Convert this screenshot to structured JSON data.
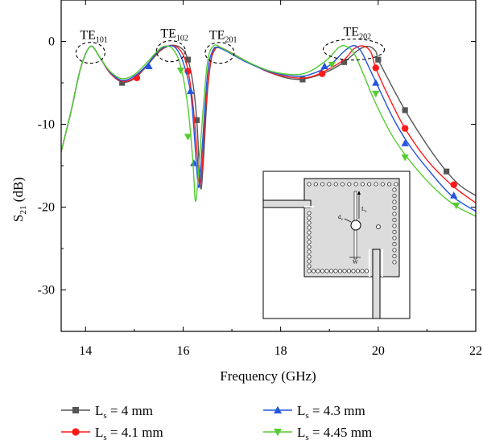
{
  "chart_data": {
    "type": "line",
    "xlabel": "Frequency (GHz)",
    "ylabel": "S21 (dB)",
    "ylabel_base": "S",
    "ylabel_sub": "21",
    "ylabel_rest": " (dB)",
    "xlim": [
      13.5,
      22
    ],
    "ylim": [
      -35,
      5
    ],
    "x_ticks": [
      14,
      16,
      18,
      20,
      22
    ],
    "y_ticks": [
      0,
      -10,
      -20,
      -30
    ],
    "x_tick_labels": [
      "14",
      "16",
      "18",
      "20",
      "22"
    ],
    "y_tick_labels": [
      "0",
      "-10",
      "-20",
      "-30"
    ],
    "grid": false,
    "annotations": [
      {
        "base": "TE",
        "sub": "101",
        "x": 14.1,
        "y": -0.7
      },
      {
        "base": "TE",
        "sub": "102",
        "x": 15.75,
        "y": -0.5
      },
      {
        "base": "TE",
        "sub": "201",
        "x": 16.75,
        "y": -0.7
      },
      {
        "base": "TE",
        "sub": "202",
        "x": 19.5,
        "y": -0.3
      }
    ],
    "series": [
      {
        "name": "Ls = 4 mm",
        "name_base": "L",
        "name_sub": "s",
        "name_rest": " = 4 mm",
        "color": "#555555",
        "marker": "square",
        "points": [
          [
            13.5,
            -13.3
          ],
          [
            13.7,
            -8.5
          ],
          [
            13.9,
            -3.2
          ],
          [
            14.1,
            -0.6
          ],
          [
            14.3,
            -2.0
          ],
          [
            14.5,
            -3.8
          ],
          [
            14.75,
            -4.9
          ],
          [
            15.0,
            -4.5
          ],
          [
            15.25,
            -3.0
          ],
          [
            15.5,
            -1.3
          ],
          [
            15.7,
            -0.55
          ],
          [
            15.85,
            -0.5
          ],
          [
            16.0,
            -1.0
          ],
          [
            16.1,
            -2.2
          ],
          [
            16.2,
            -5.0
          ],
          [
            16.28,
            -9.5
          ],
          [
            16.33,
            -15.0
          ],
          [
            16.37,
            -17.8
          ],
          [
            16.42,
            -14.0
          ],
          [
            16.5,
            -6.0
          ],
          [
            16.6,
            -1.5
          ],
          [
            16.7,
            -0.7
          ],
          [
            16.9,
            -1.1
          ],
          [
            17.3,
            -2.4
          ],
          [
            17.8,
            -3.8
          ],
          [
            18.2,
            -4.5
          ],
          [
            18.5,
            -4.5
          ],
          [
            18.9,
            -3.8
          ],
          [
            19.3,
            -2.5
          ],
          [
            19.6,
            -1.0
          ],
          [
            19.8,
            -0.6
          ],
          [
            19.95,
            -1.2
          ],
          [
            20.0,
            -2.2
          ],
          [
            20.2,
            -4.5
          ],
          [
            20.55,
            -8.3
          ],
          [
            21.0,
            -12.5
          ],
          [
            21.4,
            -15.7
          ],
          [
            21.7,
            -17.5
          ],
          [
            22.0,
            -18.6
          ]
        ],
        "markers": [
          [
            14.75,
            -5.0
          ],
          [
            16.1,
            -2.2
          ],
          [
            16.28,
            -9.5
          ],
          [
            18.45,
            -4.6
          ],
          [
            19.3,
            -2.5
          ],
          [
            20.0,
            -2.2
          ],
          [
            20.55,
            -8.3
          ],
          [
            21.4,
            -15.7
          ]
        ]
      },
      {
        "name": "Ls = 4.1 mm",
        "name_base": "L",
        "name_sub": "s",
        "name_rest": " = 4.1 mm",
        "color": "#ff1a1a",
        "marker": "circle",
        "points": [
          [
            13.5,
            -13.3
          ],
          [
            13.7,
            -8.5
          ],
          [
            13.9,
            -3.2
          ],
          [
            14.1,
            -0.6
          ],
          [
            14.3,
            -2.0
          ],
          [
            14.5,
            -3.8
          ],
          [
            14.75,
            -4.8
          ],
          [
            15.0,
            -4.4
          ],
          [
            15.25,
            -2.9
          ],
          [
            15.5,
            -1.2
          ],
          [
            15.7,
            -0.55
          ],
          [
            15.85,
            -0.6
          ],
          [
            16.0,
            -1.6
          ],
          [
            16.1,
            -3.5
          ],
          [
            16.2,
            -7.5
          ],
          [
            16.28,
            -13.0
          ],
          [
            16.33,
            -17.0
          ],
          [
            16.38,
            -16.0
          ],
          [
            16.45,
            -9.0
          ],
          [
            16.55,
            -3.0
          ],
          [
            16.65,
            -1.0
          ],
          [
            16.8,
            -0.8
          ],
          [
            17.3,
            -2.4
          ],
          [
            17.8,
            -3.8
          ],
          [
            18.3,
            -4.4
          ],
          [
            18.6,
            -4.3
          ],
          [
            18.9,
            -3.6
          ],
          [
            19.3,
            -2.2
          ],
          [
            19.5,
            -0.9
          ],
          [
            19.7,
            -0.55
          ],
          [
            19.85,
            -1.3
          ],
          [
            19.95,
            -3.2
          ],
          [
            20.2,
            -6.5
          ],
          [
            20.55,
            -10.5
          ],
          [
            21.0,
            -14.3
          ],
          [
            21.5,
            -17.3
          ],
          [
            22.0,
            -19.5
          ]
        ],
        "markers": [
          [
            15.05,
            -4.4
          ],
          [
            16.1,
            -3.6
          ],
          [
            18.85,
            -3.9
          ],
          [
            19.95,
            -3.2
          ],
          [
            20.55,
            -10.5
          ],
          [
            21.55,
            -17.3
          ]
        ]
      },
      {
        "name": "Ls = 4.3 mm",
        "name_base": "L",
        "name_sub": "s",
        "name_rest": " = 4.3 mm",
        "color": "#2255dd",
        "marker": "triangle-up",
        "points": [
          [
            13.5,
            -13.3
          ],
          [
            13.7,
            -8.5
          ],
          [
            13.9,
            -3.2
          ],
          [
            14.1,
            -0.6
          ],
          [
            14.3,
            -2.0
          ],
          [
            14.5,
            -3.7
          ],
          [
            14.75,
            -4.7
          ],
          [
            15.0,
            -4.2
          ],
          [
            15.25,
            -2.9
          ],
          [
            15.5,
            -1.1
          ],
          [
            15.7,
            -0.55
          ],
          [
            15.85,
            -0.8
          ],
          [
            16.0,
            -2.5
          ],
          [
            16.15,
            -6.0
          ],
          [
            16.22,
            -10.5
          ],
          [
            16.28,
            -15.5
          ],
          [
            16.33,
            -17.5
          ],
          [
            16.4,
            -12.0
          ],
          [
            16.5,
            -4.0
          ],
          [
            16.6,
            -1.2
          ],
          [
            16.75,
            -0.8
          ],
          [
            17.3,
            -2.5
          ],
          [
            17.8,
            -3.7
          ],
          [
            18.3,
            -4.2
          ],
          [
            18.6,
            -4.0
          ],
          [
            19.0,
            -2.9
          ],
          [
            19.3,
            -1.2
          ],
          [
            19.5,
            -0.5
          ],
          [
            19.65,
            -1.2
          ],
          [
            19.8,
            -3.0
          ],
          [
            20.0,
            -5.5
          ],
          [
            20.3,
            -9.2
          ],
          [
            20.6,
            -12.2
          ],
          [
            21.0,
            -15.3
          ],
          [
            21.5,
            -18.6
          ],
          [
            22.0,
            -20.5
          ]
        ],
        "markers": [
          [
            15.3,
            -3.0
          ],
          [
            16.15,
            -6.0
          ],
          [
            16.22,
            -14.7
          ],
          [
            18.9,
            -3.0
          ],
          [
            19.95,
            -5.0
          ],
          [
            20.55,
            -12.3
          ],
          [
            21.55,
            -18.6
          ]
        ]
      },
      {
        "name": "Ls = 4.45 mm",
        "name_base": "L",
        "name_sub": "s",
        "name_rest": " = 4.45 mm",
        "color": "#55cc33",
        "marker": "triangle-down",
        "points": [
          [
            13.5,
            -13.3
          ],
          [
            13.7,
            -8.5
          ],
          [
            13.9,
            -3.2
          ],
          [
            14.1,
            -0.6
          ],
          [
            14.3,
            -2.0
          ],
          [
            14.5,
            -3.6
          ],
          [
            14.75,
            -4.5
          ],
          [
            15.0,
            -4.0
          ],
          [
            15.25,
            -2.6
          ],
          [
            15.5,
            -1.0
          ],
          [
            15.65,
            -0.55
          ],
          [
            15.8,
            -1.0
          ],
          [
            15.95,
            -3.0
          ],
          [
            16.1,
            -8.0
          ],
          [
            16.2,
            -14.5
          ],
          [
            16.25,
            -19.2
          ],
          [
            16.3,
            -17.0
          ],
          [
            16.4,
            -9.0
          ],
          [
            16.5,
            -2.5
          ],
          [
            16.62,
            -0.55
          ],
          [
            16.8,
            -0.8
          ],
          [
            17.3,
            -2.4
          ],
          [
            17.8,
            -3.6
          ],
          [
            18.3,
            -4.0
          ],
          [
            18.6,
            -3.6
          ],
          [
            18.95,
            -2.2
          ],
          [
            19.2,
            -0.7
          ],
          [
            19.35,
            -0.6
          ],
          [
            19.5,
            -1.4
          ],
          [
            19.7,
            -4.0
          ],
          [
            19.95,
            -7.5
          ],
          [
            20.3,
            -11.5
          ],
          [
            20.7,
            -14.8
          ],
          [
            21.2,
            -18.0
          ],
          [
            21.6,
            -19.9
          ],
          [
            22.0,
            -21.1
          ]
        ],
        "markers": [
          [
            15.95,
            -3.5
          ],
          [
            16.1,
            -11.5
          ],
          [
            19.05,
            -2.8
          ],
          [
            19.95,
            -6.3
          ],
          [
            20.55,
            -14.0
          ],
          [
            21.6,
            -19.8
          ]
        ]
      }
    ],
    "inset": {
      "labels": [
        {
          "base": "L",
          "sub": "s"
        },
        {
          "base": "d",
          "sub": "v"
        },
        {
          "base": "W",
          "sub": ""
        }
      ]
    }
  }
}
